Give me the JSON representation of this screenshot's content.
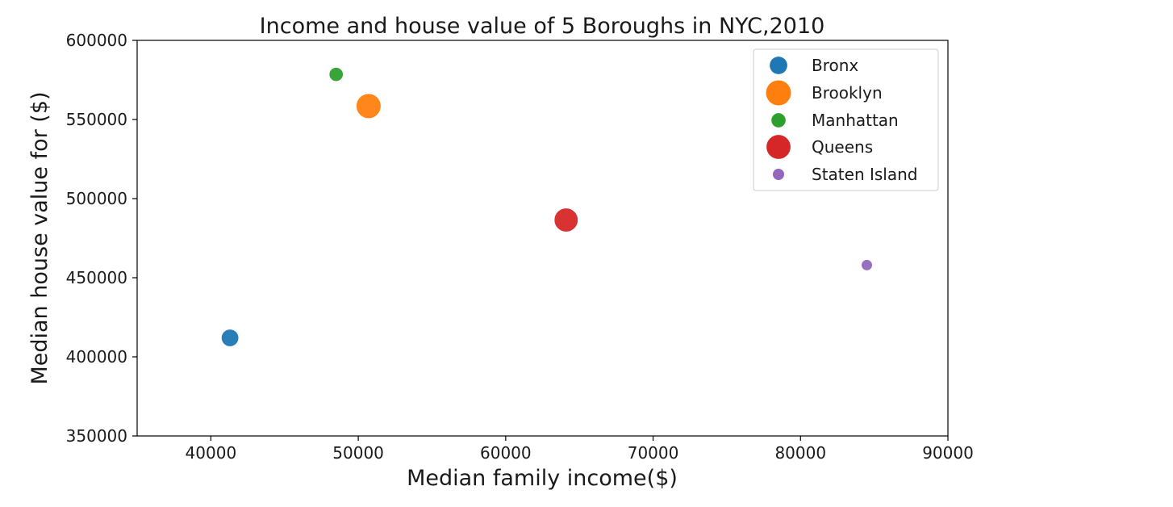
{
  "chart_data": {
    "type": "scatter",
    "title": "Income and house value of 5 Boroughs in NYC,2010",
    "xlabel": "Median family income($)",
    "ylabel": "Median house value for ($)",
    "xlim": [
      35000,
      90000
    ],
    "ylim": [
      350000,
      600000
    ],
    "xticks": [
      40000,
      50000,
      60000,
      70000,
      80000,
      90000
    ],
    "yticks": [
      350000,
      400000,
      450000,
      500000,
      550000,
      600000
    ],
    "grid": false,
    "legend_position": "upper-right",
    "series": [
      {
        "name": "Bronx",
        "x": 41300,
        "y": 412000,
        "color": "#1f77b4",
        "relative_size": 0.62
      },
      {
        "name": "Brooklyn",
        "x": 50700,
        "y": 558500,
        "color": "#ff7f0e",
        "relative_size": 1.0
      },
      {
        "name": "Manhattan",
        "x": 48500,
        "y": 578500,
        "color": "#2ca02c",
        "relative_size": 0.45
      },
      {
        "name": "Queens",
        "x": 64100,
        "y": 486500,
        "color": "#d62728",
        "relative_size": 0.95
      },
      {
        "name": "Staten Island",
        "x": 84500,
        "y": 458000,
        "color": "#9467bd",
        "relative_size": 0.3
      }
    ]
  }
}
